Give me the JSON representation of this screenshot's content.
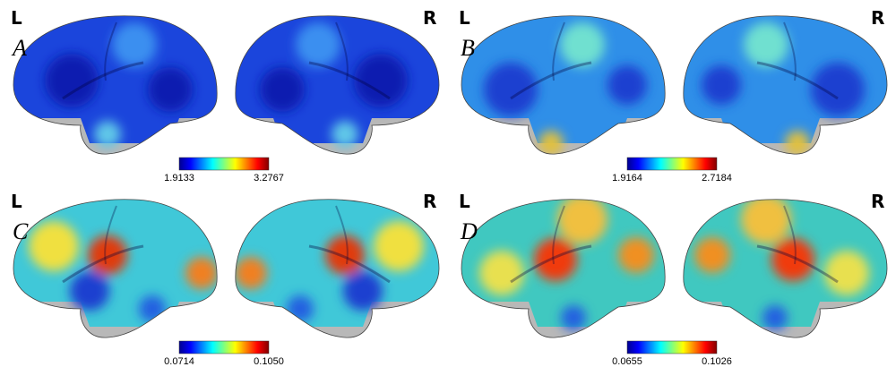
{
  "panels": [
    {
      "label": "A",
      "left": "L",
      "right": "R",
      "colorbar": {
        "min": "1.9133",
        "max": "3.2767"
      }
    },
    {
      "label": "B",
      "left": "L",
      "right": "R",
      "colorbar": {
        "min": "1.9164",
        "max": "2.7184"
      }
    },
    {
      "label": "C",
      "left": "L",
      "right": "R",
      "colorbar": {
        "min": "0.0714",
        "max": "0.1050"
      }
    },
    {
      "label": "D",
      "left": "L",
      "right": "R",
      "colorbar": {
        "min": "0.0655",
        "max": "0.1026"
      }
    }
  ]
}
